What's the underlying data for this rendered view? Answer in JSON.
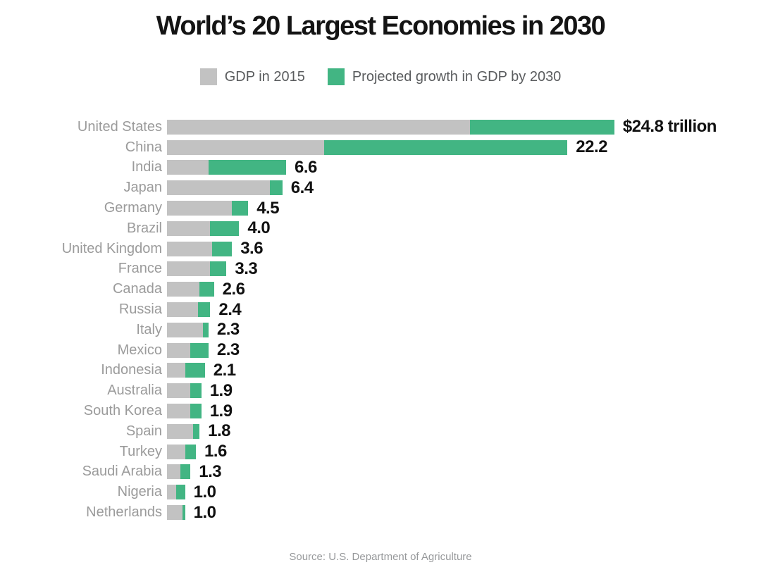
{
  "header": {
    "title": "World’s 20 Largest Economies in 2030"
  },
  "footer": {
    "source": "Source: U.S. Department of Agriculture"
  },
  "chart_data": {
    "type": "bar",
    "orientation": "horizontal",
    "stacked": true,
    "title": "World’s 20 Largest Economies in 2030",
    "unit": "trillions of USD",
    "categories": [
      "United States",
      "China",
      "India",
      "Japan",
      "Germany",
      "Brazil",
      "United Kingdom",
      "France",
      "Canada",
      "Russia",
      "Italy",
      "Mexico",
      "Indonesia",
      "Australia",
      "South Korea",
      "Spain",
      "Turkey",
      "Saudi Arabia",
      "Nigeria",
      "Netherlands"
    ],
    "series": [
      {
        "name": "GDP in 2015",
        "color": "#c2c2c2",
        "values": [
          16.8,
          8.7,
          2.3,
          5.7,
          3.6,
          2.4,
          2.5,
          2.4,
          1.8,
          1.7,
          2.0,
          1.3,
          1.0,
          1.3,
          1.3,
          1.45,
          1.0,
          0.75,
          0.5,
          0.85
        ]
      },
      {
        "name": "Projected growth in GDP by 2030",
        "color": "#42b583",
        "values": [
          8.0,
          13.5,
          4.3,
          0.7,
          0.9,
          1.6,
          1.1,
          0.9,
          0.8,
          0.7,
          0.3,
          1.0,
          1.1,
          0.6,
          0.6,
          0.35,
          0.6,
          0.55,
          0.5,
          0.15
        ]
      }
    ],
    "totals": [
      24.8,
      22.2,
      6.6,
      6.4,
      4.5,
      4.0,
      3.6,
      3.3,
      2.6,
      2.4,
      2.3,
      2.3,
      2.1,
      1.9,
      1.9,
      1.8,
      1.6,
      1.3,
      1.0,
      1.0
    ],
    "value_labels": [
      "$24.8 trillion",
      "22.2",
      "6.6",
      "6.4",
      "4.5",
      "4.0",
      "3.6",
      "3.3",
      "2.6",
      "2.4",
      "2.3",
      "2.3",
      "2.1",
      "1.9",
      "1.9",
      "1.8",
      "1.6",
      "1.3",
      "1.0",
      "1.0"
    ],
    "axis": {
      "xlim": [
        0,
        25
      ],
      "grid": false,
      "legend_position": "top-center"
    },
    "source": "Source: U.S. Department of Agriculture"
  }
}
